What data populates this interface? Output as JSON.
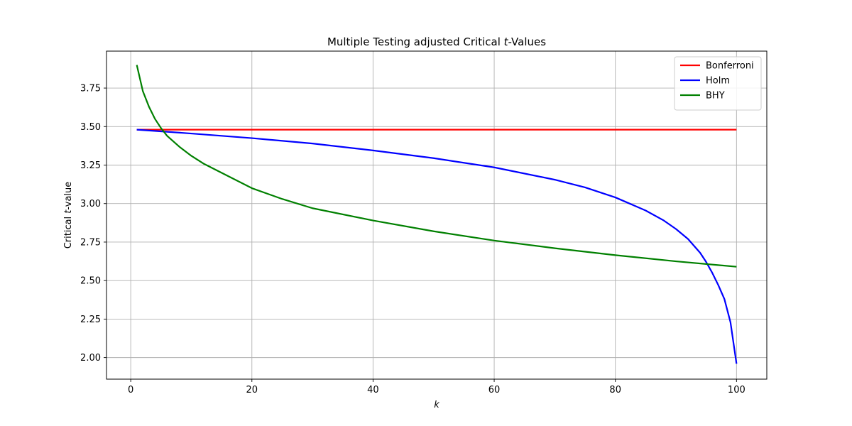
{
  "chart_data": {
    "type": "line",
    "title": "Multiple Testing adjusted Critical t-Values",
    "title_parts": {
      "before": "Multiple Testing adjusted Critical ",
      "italic": "t",
      "after": "-Values"
    },
    "xlabel": "k",
    "ylabel": "Critical t-value",
    "ylabel_parts": {
      "before": "Critical ",
      "italic": "t",
      "after": "-value"
    },
    "xlim": [
      -4.0,
      105.0
    ],
    "ylim": [
      1.86,
      3.99
    ],
    "xticks": [
      0,
      20,
      40,
      60,
      80,
      100
    ],
    "yticks": [
      2.0,
      2.25,
      2.5,
      2.75,
      3.0,
      3.25,
      3.5,
      3.75
    ],
    "ytick_labels": [
      "2.00",
      "2.25",
      "2.50",
      "2.75",
      "3.00",
      "3.25",
      "3.50",
      "3.75"
    ],
    "grid": true,
    "legend_position": "top-right",
    "series": [
      {
        "name": "Bonferroni",
        "color": "#ff0000",
        "x": [
          1,
          100
        ],
        "y": [
          3.48,
          3.48
        ]
      },
      {
        "name": "Holm",
        "color": "#0000ff",
        "x": [
          1,
          10,
          20,
          30,
          40,
          50,
          60,
          70,
          75,
          80,
          85,
          88,
          90,
          92,
          94,
          95,
          96,
          97,
          98,
          99,
          100
        ],
        "y": [
          3.48,
          3.455,
          3.425,
          3.39,
          3.345,
          3.295,
          3.235,
          3.155,
          3.105,
          3.04,
          2.955,
          2.89,
          2.835,
          2.77,
          2.68,
          2.62,
          2.55,
          2.47,
          2.38,
          2.23,
          1.96
        ]
      },
      {
        "name": "BHY",
        "color": "#008000",
        "x": [
          1,
          2,
          3,
          4,
          5,
          6,
          8,
          10,
          12,
          15,
          20,
          25,
          30,
          40,
          50,
          60,
          70,
          80,
          90,
          100
        ],
        "y": [
          3.9,
          3.73,
          3.63,
          3.55,
          3.49,
          3.44,
          3.37,
          3.31,
          3.26,
          3.2,
          3.1,
          3.03,
          2.97,
          2.89,
          2.82,
          2.76,
          2.71,
          2.665,
          2.625,
          2.59
        ]
      }
    ]
  }
}
